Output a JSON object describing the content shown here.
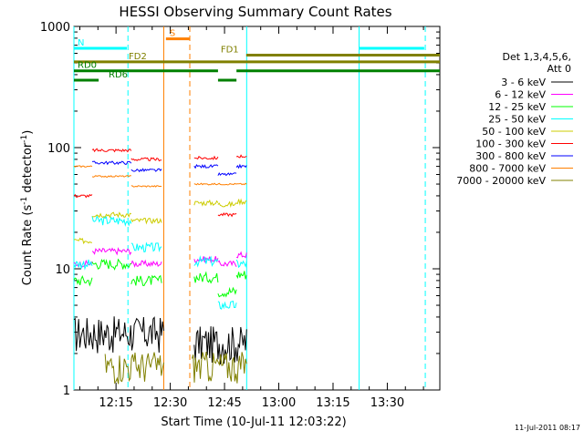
{
  "chart_data": {
    "type": "line",
    "title": "HESSI Observing Summary Count Rates",
    "xlabel": "Start Time (10-Jul-11 12:03:22)",
    "ylabel_main": "Count Rate (s",
    "ylabel_sup1": "-1",
    "ylabel_mid": " detector",
    "ylabel_sup2": "-1",
    "ylabel_end": ")",
    "yscale": "log",
    "ylim": [
      1,
      1000
    ],
    "xlim": [
      12.056,
      13.742
    ],
    "xticks": [
      {
        "label": "12:15",
        "value": 12.25
      },
      {
        "label": "12:30",
        "value": 12.5
      },
      {
        "label": "12:45",
        "value": 12.75
      },
      {
        "label": "13:00",
        "value": 13.0
      },
      {
        "label": "13:15",
        "value": 13.25
      },
      {
        "label": "13:30",
        "value": 13.5
      }
    ],
    "yticks": [
      {
        "label": "1",
        "value": 1
      },
      {
        "label": "10",
        "value": 10
      },
      {
        "label": "100",
        "value": 100
      },
      {
        "label": "1000",
        "value": 1000
      }
    ],
    "legend": {
      "placement": "right",
      "header": [
        "Det 1,3,4,5,6,",
        "Att 0"
      ],
      "entries": [
        {
          "label": "3 - 6 keV",
          "color": "#000000"
        },
        {
          "label": "6 - 12 keV",
          "color": "#ff00ff"
        },
        {
          "label": "12 - 25 keV",
          "color": "#00ff00"
        },
        {
          "label": "25 - 50 keV",
          "color": "#00ffff"
        },
        {
          "label": "50 - 100 keV",
          "color": "#cccc00"
        },
        {
          "label": "100 - 300 keV",
          "color": "#ff0000"
        },
        {
          "label": "300 - 800 keV",
          "color": "#0000ff"
        },
        {
          "label": "800 - 7000 keV",
          "color": "#ff7f00"
        },
        {
          "label": "7000 - 20000 keV",
          "color": "#808000"
        }
      ]
    },
    "status_bars": [
      {
        "label": "S",
        "color": "#ff7f00",
        "y": 790,
        "segments": [
          [
            12.48,
            12.59
          ]
        ]
      },
      {
        "label": "N",
        "color": "#00ffff",
        "y": 660,
        "segments": [
          [
            12.056,
            12.3
          ],
          [
            13.37,
            13.67
          ]
        ]
      },
      {
        "label": "FD1",
        "color": "#808000",
        "y": 580,
        "segments": [
          [
            12.85,
            13.742
          ]
        ]
      },
      {
        "label": "FD2",
        "color": "#808000",
        "y": 510,
        "segments": [
          [
            12.056,
            13.742
          ]
        ]
      },
      {
        "label": "RD0",
        "color": "#008000",
        "y": 430,
        "segments": [
          [
            12.056,
            12.72
          ],
          [
            12.805,
            13.742
          ]
        ]
      },
      {
        "label": "RD6",
        "color": "#008000",
        "y": 360,
        "segments": [
          [
            12.056,
            12.17
          ],
          [
            12.72,
            12.805
          ]
        ]
      }
    ],
    "vlines": [
      {
        "x": 12.056,
        "color": "#00ffff",
        "dashed": false
      },
      {
        "x": 12.305,
        "color": "#00ffff",
        "dashed": true
      },
      {
        "x": 12.47,
        "color": "#ff7f00",
        "dashed": false
      },
      {
        "x": 12.59,
        "color": "#ff7f00",
        "dashed": true
      },
      {
        "x": 12.852,
        "color": "#00ffff",
        "dashed": false
      },
      {
        "x": 13.37,
        "color": "#00ffff",
        "dashed": false
      },
      {
        "x": 13.675,
        "color": "#00ffff",
        "dashed": true
      }
    ],
    "series": [
      {
        "name": "3 - 6 keV",
        "color": "#000000",
        "noise": 0.35,
        "segments": [
          [
            12.056,
            12.47,
            3
          ],
          [
            12.61,
            12.852,
            2.5
          ]
        ]
      },
      {
        "name": "6 - 12 keV",
        "color": "#ff00ff",
        "noise": 0.06,
        "segments": [
          [
            12.056,
            12.14,
            11
          ],
          [
            12.14,
            12.32,
            14
          ],
          [
            12.32,
            12.46,
            11
          ],
          [
            12.61,
            12.72,
            12
          ],
          [
            12.72,
            12.805,
            11
          ],
          [
            12.805,
            12.852,
            13
          ]
        ]
      },
      {
        "name": "12 - 25 keV",
        "color": "#00ff00",
        "noise": 0.1,
        "segments": [
          [
            12.056,
            12.14,
            8
          ],
          [
            12.14,
            12.32,
            11
          ],
          [
            12.32,
            12.46,
            8
          ],
          [
            12.61,
            12.72,
            8.5
          ],
          [
            12.72,
            12.805,
            6.5
          ],
          [
            12.805,
            12.852,
            9
          ]
        ]
      },
      {
        "name": "25 - 50 keV",
        "color": "#00ffff",
        "noise": 0.09,
        "segments": [
          [
            12.056,
            12.14,
            11
          ],
          [
            12.14,
            12.32,
            25
          ],
          [
            12.32,
            12.46,
            15
          ],
          [
            12.61,
            12.72,
            11.5
          ],
          [
            12.72,
            12.805,
            5
          ],
          [
            12.805,
            12.852,
            11
          ]
        ]
      },
      {
        "name": "50 - 100 keV",
        "color": "#cccc00",
        "noise": 0.05,
        "segments": [
          [
            12.056,
            12.14,
            17
          ],
          [
            12.14,
            12.32,
            28
          ],
          [
            12.32,
            12.46,
            25
          ],
          [
            12.61,
            12.72,
            35
          ],
          [
            12.72,
            12.805,
            34
          ],
          [
            12.805,
            12.852,
            36
          ]
        ]
      },
      {
        "name": "100 - 300 keV",
        "color": "#ff0000",
        "noise": 0.03,
        "segments": [
          [
            12.056,
            12.14,
            40
          ],
          [
            12.14,
            12.32,
            95
          ],
          [
            12.32,
            12.46,
            80
          ],
          [
            12.61,
            12.72,
            82
          ],
          [
            12.72,
            12.805,
            28
          ],
          [
            12.805,
            12.852,
            85
          ]
        ]
      },
      {
        "name": "300 - 800 keV",
        "color": "#0000ff",
        "noise": 0.03,
        "segments": [
          [
            12.14,
            12.32,
            75
          ],
          [
            12.32,
            12.46,
            65
          ],
          [
            12.61,
            12.72,
            70
          ],
          [
            12.72,
            12.805,
            60
          ],
          [
            12.805,
            12.852,
            70
          ]
        ]
      },
      {
        "name": "800 - 7000 keV",
        "color": "#ff7f00",
        "noise": 0.015,
        "segments": [
          [
            12.056,
            12.14,
            70
          ],
          [
            12.14,
            12.32,
            58
          ],
          [
            12.32,
            12.46,
            48
          ],
          [
            12.61,
            12.852,
            50
          ]
        ]
      },
      {
        "name": "7000 - 20000 keV",
        "color": "#808000",
        "noise": 0.3,
        "segments": [
          [
            12.2,
            12.47,
            1.6
          ],
          [
            12.6,
            12.852,
            1.6
          ]
        ]
      }
    ]
  },
  "footer": {
    "timestamp": "11-Jul-2011 08:17"
  }
}
